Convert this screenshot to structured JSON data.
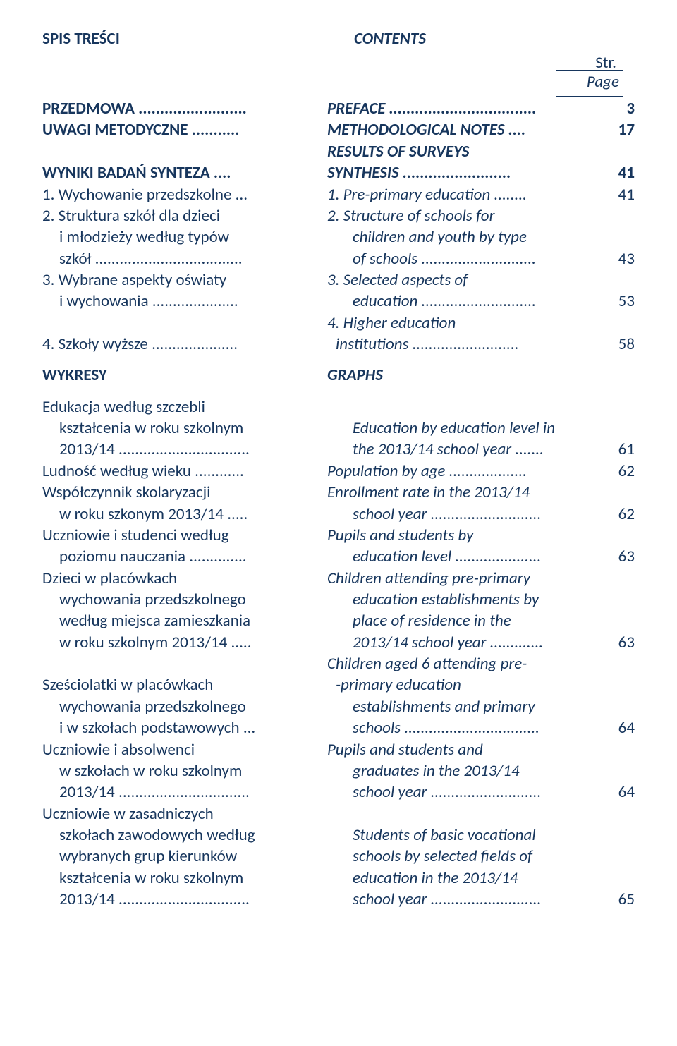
{
  "text_color": "#17365d",
  "background_color": "#ffffff",
  "font_family": "Calibri",
  "heading": {
    "pl": "SPIS TREŚCI",
    "en": "CONTENTS"
  },
  "str_page": {
    "line1": "Str.",
    "line2": "Page"
  },
  "rows": [
    {
      "pl": "PRZEDMOWA .........................",
      "en": "PREFACE ..................................",
      "pg": "3",
      "bold": true
    },
    {
      "pl": "UWAGI METODYCZNE ...........",
      "en": "METHODOLOGICAL NOTES ....",
      "pg": "17",
      "bold": true
    },
    {
      "pl": "",
      "en": "RESULTS OF SURVEYS",
      "pg": "",
      "bold": true
    },
    {
      "pl": "WYNIKI BADAŃ SYNTEZA ....",
      "en": " SYNTHESIS .........................",
      "pg": "41",
      "bold": true
    },
    {
      "pl": "1. Wychowanie przedszkolne ...",
      "en": "1. Pre-primary education ........",
      "pg": "41"
    },
    {
      "pl": "2. Struktura szkół dla dzieci",
      "en": "2. Structure of schools for",
      "pg": ""
    },
    {
      "pl": "i młodzieży według typów",
      "en": "children and youth by type",
      "pg": "",
      "indent": true
    },
    {
      "pl": "szkół ....................................",
      "en": "of schools ............................",
      "pg": "43",
      "indent": true
    },
    {
      "pl": "3. Wybrane aspekty oświaty",
      "en": "3. Selected aspects of",
      "pg": ""
    },
    {
      "pl": "i wychowania .....................",
      "en": "education ............................",
      "pg": "53",
      "indent": true
    },
    {
      "pl": "",
      "en": "4. Higher education",
      "pg": ""
    },
    {
      "pl": "4. Szkoły wyższe .....................",
      "en": "institutions ..........................",
      "pg": "58",
      "indent_en": true
    },
    {
      "pl": "WYKRESY",
      "en": "GRAPHS",
      "pg": "",
      "bold": true,
      "gap_before": true
    },
    {
      "pl": "Edukacja według szczebli",
      "en": "",
      "pg": "",
      "gap_before": true
    },
    {
      "pl": "kształcenia w roku szkolnym",
      "en": "Education by education level in",
      "pg": "",
      "indent": true
    },
    {
      "pl": "2013/14 ................................",
      "en": "the 2013/14 school year .......",
      "pg": "61",
      "indent": true
    },
    {
      "pl": "Ludność według wieku ............",
      "en": "Population by age ...................",
      "pg": "62"
    },
    {
      "pl": "Współczynnik skolaryzacji",
      "en": "Enrollment rate in the 2013/14",
      "pg": ""
    },
    {
      "pl": "w roku szkonym 2013/14 .....",
      "en": "school year ...........................",
      "pg": "62",
      "indent": true
    },
    {
      "pl": "Uczniowie i studenci według",
      "en": "Pupils and students by",
      "pg": ""
    },
    {
      "pl": "poziomu nauczania ..............",
      "en": "education level .....................",
      "pg": "63",
      "indent": true
    },
    {
      "pl": "Dzieci w placówkach",
      "en": "Children attending pre-primary",
      "pg": ""
    },
    {
      "pl": "wychowania przedszkolnego",
      "en": "education establishments by",
      "pg": "",
      "indent": true
    },
    {
      "pl": "według miejsca zamieszkania",
      "en": "place of residence in the",
      "pg": "",
      "indent": true
    },
    {
      "pl": "w roku szkolnym 2013/14 .....",
      "en": "2013/14 school year .............",
      "pg": "63",
      "indent": true
    },
    {
      "pl": "",
      "en": "Children aged 6 attending pre-",
      "pg": ""
    },
    {
      "pl": "Sześciolatki w placówkach",
      "en": "-primary education",
      "pg": "",
      "indent_en": true
    },
    {
      "pl": "wychowania przedszkolnego",
      "en": "establishments and primary",
      "pg": "",
      "indent": true
    },
    {
      "pl": "i w szkołach podstawowych ...",
      "en": "schools .................................",
      "pg": "64",
      "indent": true
    },
    {
      "pl": "Uczniowie i absolwenci",
      "en": "Pupils and students and",
      "pg": ""
    },
    {
      "pl": "w szkołach w roku szkolnym",
      "en": "graduates in the 2013/14",
      "pg": "",
      "indent": true
    },
    {
      "pl": "2013/14 ................................",
      "en": "school year ...........................",
      "pg": "64",
      "indent": true
    },
    {
      "pl": "Uczniowie w zasadniczych",
      "en": "",
      "pg": ""
    },
    {
      "pl": "szkołach zawodowych według",
      "en": "Students of basic vocational",
      "pg": "",
      "indent": true
    },
    {
      "pl": "wybranych grup kierunków",
      "en": "schools by selected fields of",
      "pg": "",
      "indent": true
    },
    {
      "pl": "kształcenia w roku szkolnym",
      "en": "education in the 2013/14",
      "pg": "",
      "indent": true
    },
    {
      "pl": "2013/14 ................................",
      "en": "school year ...........................",
      "pg": "65",
      "indent": true
    }
  ]
}
